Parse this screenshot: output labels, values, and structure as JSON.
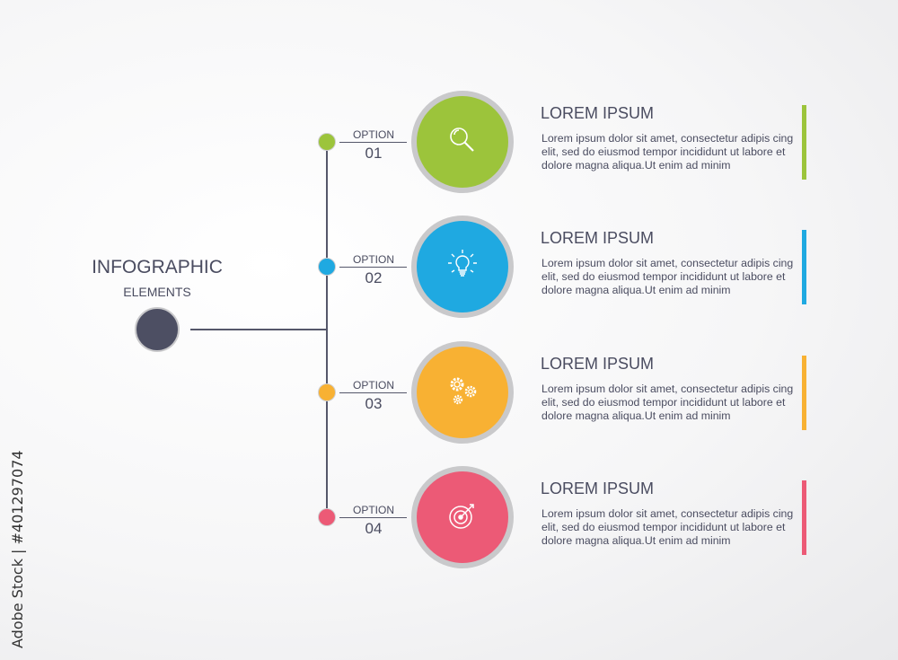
{
  "header": {
    "title": "INFOGRAPHIC",
    "subtitle": "ELEMENTS"
  },
  "items": [
    {
      "option_label": "OPTION",
      "number": "01",
      "icon": "magnifier-icon",
      "color": "#9cc43b",
      "heading": "LOREM IPSUM",
      "body": "Lorem ipsum dolor sit amet, consectetur adipis cing elit, sed do eiusmod tempor incididunt ut labore et dolore magna aliqua.Ut enim ad minim"
    },
    {
      "option_label": "OPTION",
      "number": "02",
      "icon": "lightbulb-icon",
      "color": "#1fa9e1",
      "heading": "LOREM IPSUM",
      "body": "Lorem ipsum dolor sit amet, consectetur adipis cing elit, sed do eiusmod tempor incididunt ut labore et dolore magna aliqua.Ut enim ad minim"
    },
    {
      "option_label": "OPTION",
      "number": "03",
      "icon": "gears-icon",
      "color": "#f8b133",
      "heading": "LOREM IPSUM",
      "body": "Lorem ipsum dolor sit amet, consectetur adipis cing elit, sed do eiusmod tempor incididunt ut labore et dolore magna aliqua.Ut enim ad minim"
    },
    {
      "option_label": "OPTION",
      "number": "04",
      "icon": "target-icon",
      "color": "#ec5a76",
      "heading": "LOREM IPSUM",
      "body": "Lorem ipsum dolor sit amet, consectetur adipis cing elit, sed do eiusmod tempor incididunt ut labore et dolore magna aliqua.Ut enim ad minim"
    }
  ],
  "hub_color": "#4d4f63",
  "watermark": {
    "credit": "Adobe Stock | #401297074"
  }
}
